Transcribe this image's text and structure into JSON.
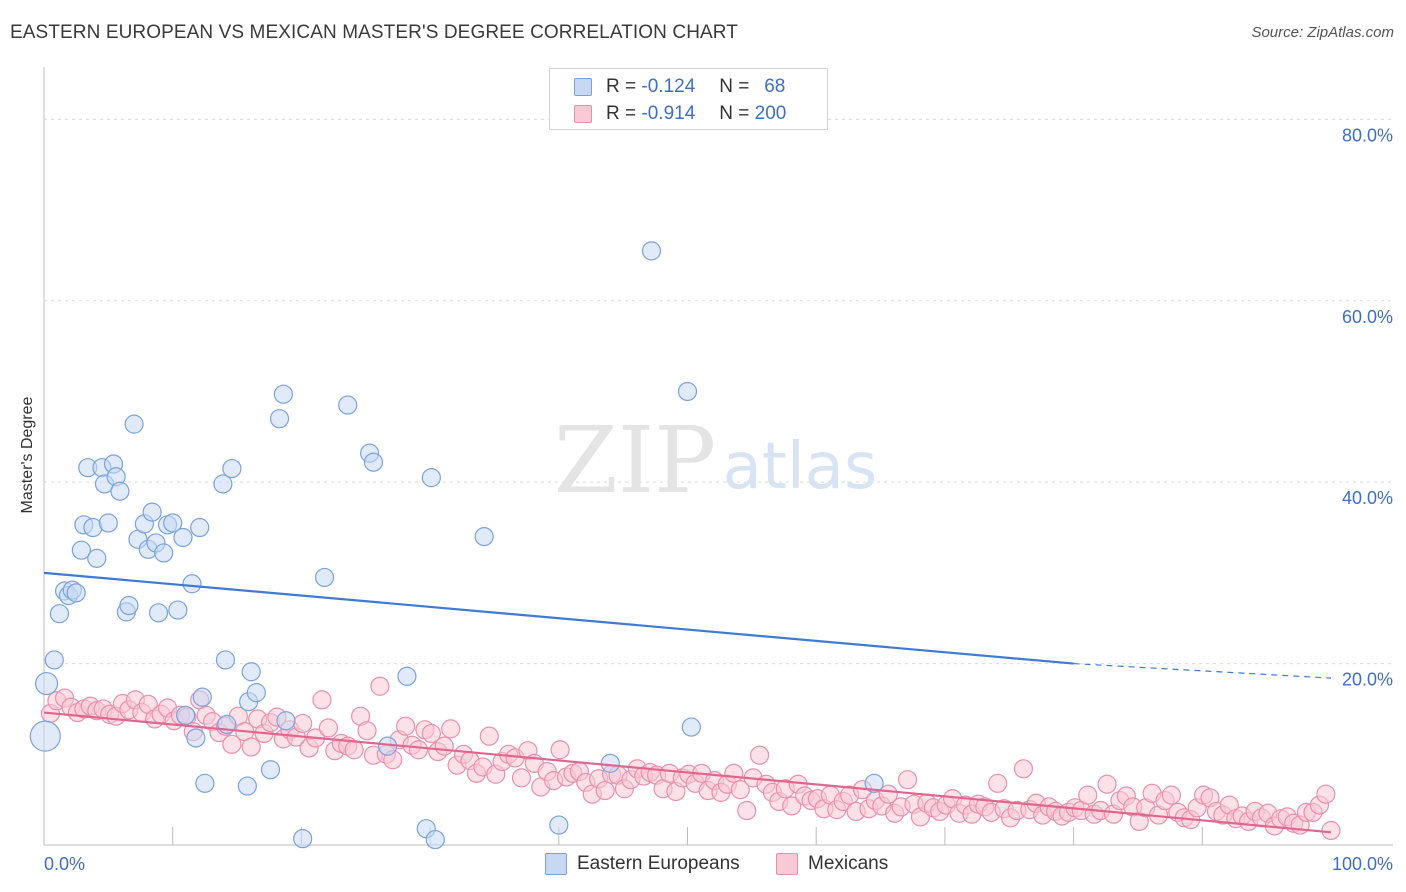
{
  "chart_data": {
    "type": "scatter",
    "title": "EASTERN EUROPEAN VS MEXICAN MASTER'S DEGREE CORRELATION CHART",
    "source": "Source: ZipAtlas.com",
    "watermark": {
      "zip": "ZIP",
      "atlas": "atlas"
    },
    "ylabel": "Master's Degree",
    "xlim": [
      0,
      100
    ],
    "ylim": [
      0,
      85
    ],
    "x_tick_labels": {
      "left": "0.0%",
      "right": "100.0%"
    },
    "y_ticks": [
      {
        "value": 80,
        "label": "80.0%"
      },
      {
        "value": 60,
        "label": "60.0%"
      },
      {
        "value": 40,
        "label": "40.0%"
      },
      {
        "value": 20,
        "label": "20.0%"
      }
    ],
    "legend_top": [
      {
        "r_label": "R =",
        "r_value": "-0.124",
        "n_label": "N =",
        "n_value": "68"
      },
      {
        "r_label": "R =",
        "r_value": "-0.914",
        "n_label": "N =",
        "n_value": "200"
      }
    ],
    "series": [
      {
        "name": "Eastern Europeans",
        "color": "#7aa3dd",
        "fill": "#c7d8f3",
        "trend": {
          "x0": 0,
          "y0": 30.0,
          "x1": 80,
          "y1": 20.0,
          "dash_to_x": 100,
          "dash_to_y": 18.4
        },
        "points": [
          [
            0.1,
            12.0
          ],
          [
            0.2,
            17.8
          ],
          [
            0.8,
            20.4
          ],
          [
            1.2,
            25.5
          ],
          [
            1.6,
            28.0
          ],
          [
            1.9,
            27.5
          ],
          [
            2.2,
            28.1
          ],
          [
            2.5,
            27.8
          ],
          [
            2.9,
            32.5
          ],
          [
            3.1,
            35.3
          ],
          [
            3.4,
            41.6
          ],
          [
            3.8,
            35.0
          ],
          [
            4.1,
            31.6
          ],
          [
            4.5,
            41.6
          ],
          [
            4.7,
            39.8
          ],
          [
            5.0,
            35.5
          ],
          [
            5.4,
            42.0
          ],
          [
            5.6,
            40.6
          ],
          [
            5.9,
            39.0
          ],
          [
            6.4,
            25.7
          ],
          [
            6.6,
            26.4
          ],
          [
            7.0,
            46.4
          ],
          [
            7.3,
            33.7
          ],
          [
            7.8,
            35.4
          ],
          [
            8.1,
            32.6
          ],
          [
            8.4,
            36.7
          ],
          [
            8.7,
            33.3
          ],
          [
            8.9,
            25.6
          ],
          [
            9.3,
            32.2
          ],
          [
            9.6,
            35.3
          ],
          [
            10.0,
            35.5
          ],
          [
            10.4,
            25.9
          ],
          [
            10.8,
            33.9
          ],
          [
            11.5,
            28.8
          ],
          [
            12.1,
            35.0
          ],
          [
            11.0,
            14.3
          ],
          [
            11.8,
            11.8
          ],
          [
            12.3,
            16.3
          ],
          [
            12.5,
            6.8
          ],
          [
            13.9,
            39.8
          ],
          [
            14.6,
            41.5
          ],
          [
            14.1,
            20.4
          ],
          [
            14.2,
            13.3
          ],
          [
            15.8,
            6.5
          ],
          [
            15.9,
            15.8
          ],
          [
            16.1,
            19.1
          ],
          [
            16.5,
            16.8
          ],
          [
            17.6,
            8.3
          ],
          [
            18.3,
            47.0
          ],
          [
            18.6,
            49.7
          ],
          [
            18.8,
            13.7
          ],
          [
            20.1,
            0.7
          ],
          [
            21.8,
            29.5
          ],
          [
            23.6,
            48.5
          ],
          [
            25.3,
            43.2
          ],
          [
            25.6,
            42.2
          ],
          [
            26.7,
            10.9
          ],
          [
            28.2,
            18.6
          ],
          [
            29.7,
            1.8
          ],
          [
            30.1,
            40.5
          ],
          [
            30.4,
            0.6
          ],
          [
            34.2,
            34.0
          ],
          [
            44.0,
            9.0
          ],
          [
            47.2,
            65.5
          ],
          [
            50.0,
            50.0
          ],
          [
            50.3,
            13.0
          ],
          [
            64.5,
            6.8
          ],
          [
            40.0,
            2.2
          ]
        ]
      },
      {
        "name": "Mexicans",
        "color": "#ea8fae",
        "fill": "#f9c9d7",
        "trend": {
          "x0": 0,
          "y0": 14.6,
          "x1": 100,
          "y1": 1.4
        },
        "points": [
          [
            0.5,
            14.5
          ],
          [
            1.0,
            15.9
          ],
          [
            1.6,
            16.2
          ],
          [
            2.1,
            15.2
          ],
          [
            2.6,
            14.6
          ],
          [
            3.1,
            15.0
          ],
          [
            3.6,
            15.3
          ],
          [
            4.1,
            14.8
          ],
          [
            4.6,
            15.0
          ],
          [
            5.1,
            14.4
          ],
          [
            5.6,
            14.2
          ],
          [
            6.1,
            15.6
          ],
          [
            6.6,
            14.9
          ],
          [
            7.1,
            16.0
          ],
          [
            7.6,
            14.6
          ],
          [
            8.1,
            15.5
          ],
          [
            8.6,
            13.9
          ],
          [
            9.1,
            14.4
          ],
          [
            9.6,
            15.1
          ],
          [
            10.1,
            13.7
          ],
          [
            10.6,
            14.3
          ],
          [
            11.1,
            14.1
          ],
          [
            11.6,
            12.5
          ],
          [
            12.1,
            16.0
          ],
          [
            12.6,
            14.3
          ],
          [
            13.1,
            13.6
          ],
          [
            13.6,
            12.4
          ],
          [
            14.1,
            13.1
          ],
          [
            14.6,
            11.1
          ],
          [
            15.1,
            14.2
          ],
          [
            15.6,
            12.5
          ],
          [
            16.1,
            10.8
          ],
          [
            16.6,
            13.9
          ],
          [
            17.1,
            12.3
          ],
          [
            17.6,
            13.5
          ],
          [
            18.1,
            14.1
          ],
          [
            18.6,
            11.7
          ],
          [
            19.1,
            12.7
          ],
          [
            19.6,
            11.9
          ],
          [
            20.1,
            13.4
          ],
          [
            20.6,
            10.7
          ],
          [
            21.1,
            11.8
          ],
          [
            21.6,
            16.0
          ],
          [
            22.1,
            12.9
          ],
          [
            22.6,
            10.4
          ],
          [
            23.1,
            11.2
          ],
          [
            23.6,
            10.9
          ],
          [
            24.1,
            10.5
          ],
          [
            24.6,
            14.2
          ],
          [
            25.1,
            12.6
          ],
          [
            25.6,
            9.9
          ],
          [
            26.1,
            17.5
          ],
          [
            26.6,
            10.0
          ],
          [
            27.1,
            9.4
          ],
          [
            27.6,
            11.6
          ],
          [
            28.1,
            13.1
          ],
          [
            28.6,
            11.0
          ],
          [
            29.1,
            10.5
          ],
          [
            29.6,
            12.7
          ],
          [
            30.1,
            12.3
          ],
          [
            30.6,
            10.3
          ],
          [
            31.1,
            10.9
          ],
          [
            31.6,
            12.8
          ],
          [
            32.1,
            8.8
          ],
          [
            32.6,
            10.0
          ],
          [
            33.1,
            9.3
          ],
          [
            33.6,
            7.9
          ],
          [
            34.1,
            8.6
          ],
          [
            34.6,
            12.0
          ],
          [
            35.1,
            7.8
          ],
          [
            35.6,
            9.2
          ],
          [
            36.1,
            10.0
          ],
          [
            36.6,
            9.6
          ],
          [
            37.1,
            7.4
          ],
          [
            37.6,
            10.4
          ],
          [
            38.1,
            9.0
          ],
          [
            38.6,
            6.4
          ],
          [
            39.1,
            8.1
          ],
          [
            39.6,
            7.1
          ],
          [
            40.1,
            10.5
          ],
          [
            40.6,
            7.5
          ],
          [
            41.1,
            7.9
          ],
          [
            41.6,
            8.1
          ],
          [
            42.1,
            6.9
          ],
          [
            42.6,
            5.6
          ],
          [
            43.1,
            7.3
          ],
          [
            43.6,
            6.0
          ],
          [
            44.1,
            7.8
          ],
          [
            44.6,
            7.7
          ],
          [
            45.1,
            6.2
          ],
          [
            45.6,
            7.2
          ],
          [
            46.1,
            8.4
          ],
          [
            46.6,
            7.6
          ],
          [
            47.1,
            8.0
          ],
          [
            47.6,
            7.7
          ],
          [
            48.1,
            6.2
          ],
          [
            48.6,
            7.9
          ],
          [
            49.1,
            5.9
          ],
          [
            49.6,
            7.4
          ],
          [
            50.1,
            7.8
          ],
          [
            50.6,
            6.8
          ],
          [
            51.1,
            7.9
          ],
          [
            51.6,
            6.0
          ],
          [
            52.1,
            7.1
          ],
          [
            52.6,
            5.8
          ],
          [
            53.1,
            6.7
          ],
          [
            53.6,
            7.9
          ],
          [
            54.1,
            6.1
          ],
          [
            54.6,
            3.8
          ],
          [
            55.1,
            7.4
          ],
          [
            55.6,
            9.9
          ],
          [
            56.1,
            6.7
          ],
          [
            56.6,
            5.8
          ],
          [
            57.1,
            4.8
          ],
          [
            57.6,
            6.2
          ],
          [
            58.1,
            4.3
          ],
          [
            58.6,
            6.7
          ],
          [
            59.1,
            5.4
          ],
          [
            59.6,
            4.9
          ],
          [
            60.1,
            5.1
          ],
          [
            60.6,
            4.0
          ],
          [
            61.1,
            5.5
          ],
          [
            61.6,
            3.9
          ],
          [
            62.1,
            4.8
          ],
          [
            62.6,
            5.5
          ],
          [
            63.1,
            3.7
          ],
          [
            63.6,
            6.1
          ],
          [
            64.1,
            4.0
          ],
          [
            64.6,
            4.9
          ],
          [
            65.1,
            4.3
          ],
          [
            65.6,
            5.6
          ],
          [
            66.1,
            3.5
          ],
          [
            66.6,
            4.2
          ],
          [
            67.1,
            7.2
          ],
          [
            67.6,
            4.5
          ],
          [
            68.1,
            3.1
          ],
          [
            68.6,
            4.6
          ],
          [
            69.1,
            4.1
          ],
          [
            69.6,
            3.7
          ],
          [
            70.1,
            4.4
          ],
          [
            70.6,
            5.1
          ],
          [
            71.1,
            3.5
          ],
          [
            71.6,
            4.4
          ],
          [
            72.1,
            3.4
          ],
          [
            72.6,
            4.5
          ],
          [
            73.1,
            4.2
          ],
          [
            73.6,
            3.6
          ],
          [
            74.1,
            6.8
          ],
          [
            74.6,
            4.0
          ],
          [
            75.1,
            3.0
          ],
          [
            75.6,
            3.8
          ],
          [
            76.1,
            8.4
          ],
          [
            76.6,
            3.9
          ],
          [
            77.1,
            4.6
          ],
          [
            77.6,
            3.3
          ],
          [
            78.1,
            4.2
          ],
          [
            78.6,
            3.7
          ],
          [
            79.1,
            3.2
          ],
          [
            79.6,
            3.6
          ],
          [
            80.1,
            4.1
          ],
          [
            80.6,
            3.8
          ],
          [
            81.1,
            5.5
          ],
          [
            81.6,
            3.4
          ],
          [
            82.1,
            3.8
          ],
          [
            82.6,
            6.7
          ],
          [
            83.1,
            3.4
          ],
          [
            83.6,
            4.9
          ],
          [
            84.1,
            5.4
          ],
          [
            84.6,
            4.2
          ],
          [
            85.1,
            2.6
          ],
          [
            85.6,
            4.1
          ],
          [
            86.1,
            5.7
          ],
          [
            86.6,
            3.3
          ],
          [
            87.1,
            4.9
          ],
          [
            87.6,
            5.5
          ],
          [
            88.1,
            3.6
          ],
          [
            88.6,
            3.0
          ],
          [
            89.1,
            2.8
          ],
          [
            89.6,
            4.1
          ],
          [
            90.1,
            5.5
          ],
          [
            90.6,
            5.2
          ],
          [
            91.1,
            3.7
          ],
          [
            91.6,
            3.3
          ],
          [
            92.1,
            4.4
          ],
          [
            92.6,
            2.9
          ],
          [
            93.1,
            3.2
          ],
          [
            93.6,
            2.6
          ],
          [
            94.1,
            3.7
          ],
          [
            94.6,
            3.0
          ],
          [
            95.1,
            3.5
          ],
          [
            95.6,
            2.1
          ],
          [
            96.1,
            2.9
          ],
          [
            96.6,
            3.1
          ],
          [
            97.1,
            2.4
          ],
          [
            97.6,
            2.2
          ],
          [
            98.1,
            3.6
          ],
          [
            98.6,
            3.6
          ],
          [
            99.1,
            4.4
          ],
          [
            99.6,
            5.6
          ],
          [
            100.0,
            1.6
          ]
        ]
      }
    ]
  }
}
